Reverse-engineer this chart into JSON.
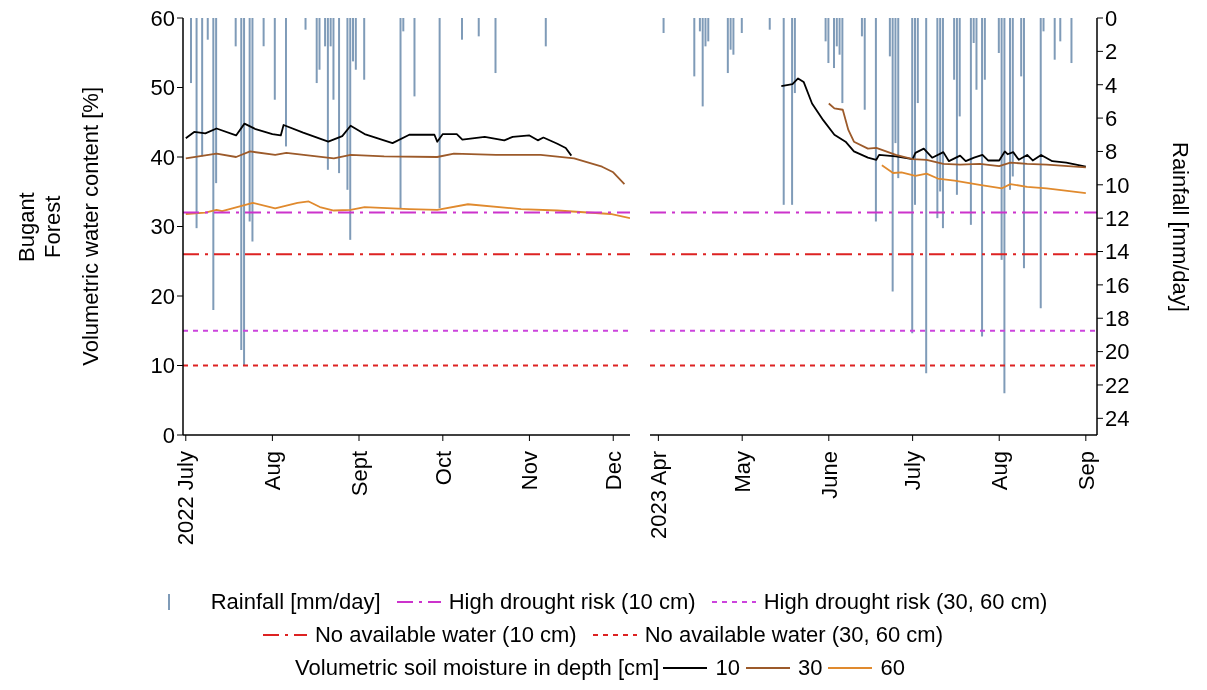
{
  "chart_data": [
    {
      "type": "line",
      "title": "Bugant Forest",
      "ylabel": "Volumetric water content [%]",
      "legend": "bottom",
      "legend_title": "Volumetric soil moisture in depth [cm]",
      "tick_labels": "xy",
      "xlim": [
        "2022-06-30",
        "2022-12-07"
      ],
      "xticks": [
        {
          "value": "2022-07-01",
          "label": "2022 July"
        },
        {
          "value": "2022-08-01",
          "label": "Aug"
        },
        {
          "value": "2022-09-01",
          "label": "Sept"
        },
        {
          "value": "2022-10-01",
          "label": "Oct"
        },
        {
          "value": "2022-11-01",
          "label": "Nov"
        },
        {
          "value": "2022-12-01",
          "label": "Dec"
        }
      ],
      "ylim": [
        0,
        60
      ],
      "yticks": [
        0,
        10,
        20,
        30,
        40,
        50,
        60
      ],
      "y2lim": [
        25,
        0
      ],
      "series": [
        {
          "name": "Rainfall [mm/day]",
          "type": "bar",
          "axis": "y2",
          "color": "#7f9bb8",
          "x": [
            "2022-07-03",
            "2022-07-05",
            "2022-07-07",
            "2022-07-09",
            "2022-07-11",
            "2022-07-12",
            "2022-07-19",
            "2022-07-21",
            "2022-07-22",
            "2022-07-24",
            "2022-07-25",
            "2022-07-29",
            "2022-08-02",
            "2022-08-06",
            "2022-08-13",
            "2022-08-17",
            "2022-08-18",
            "2022-08-20",
            "2022-08-21",
            "2022-08-22",
            "2022-08-23",
            "2022-08-25",
            "2022-08-28",
            "2022-08-29",
            "2022-08-30",
            "2022-08-31",
            "2022-09-03",
            "2022-09-16",
            "2022-09-17",
            "2022-09-21",
            "2022-09-30",
            "2022-10-08",
            "2022-10-14",
            "2022-10-20",
            "2022-11-07"
          ],
          "values": [
            3.9,
            12.6,
            8.3,
            1.3,
            17.5,
            9.9,
            1.7,
            19.9,
            20.8,
            12.2,
            13.4,
            1.7,
            4.9,
            7.7,
            0.7,
            3.9,
            3.1,
            1.7,
            9.1,
            1.7,
            4.9,
            9.3,
            10.3,
            13.3,
            2.6,
            3.1,
            3.7,
            11.4,
            0.8,
            4.7,
            11.4,
            1.3,
            1.1,
            3.3,
            1.7
          ]
        },
        {
          "name": "10",
          "color": "#000000",
          "x": [
            "2022-07-01",
            "2022-07-04",
            "2022-07-08",
            "2022-07-12",
            "2022-07-19",
            "2022-07-22",
            "2022-07-26",
            "2022-08-01",
            "2022-08-04",
            "2022-08-05",
            "2022-08-12",
            "2022-08-21",
            "2022-08-26",
            "2022-08-29",
            "2022-09-03",
            "2022-09-13",
            "2022-09-19",
            "2022-09-28",
            "2022-09-29",
            "2022-10-01",
            "2022-10-06",
            "2022-10-08",
            "2022-10-16",
            "2022-10-23",
            "2022-10-26",
            "2022-11-01",
            "2022-11-04",
            "2022-11-06",
            "2022-11-11",
            "2022-11-14",
            "2022-11-16"
          ],
          "values": [
            42.7,
            43.6,
            43.4,
            44.1,
            43.1,
            44.8,
            44.0,
            43.3,
            43.1,
            44.6,
            43.5,
            42.2,
            43.0,
            44.5,
            43.3,
            42.0,
            43.2,
            43.2,
            42.2,
            43.3,
            43.3,
            42.5,
            42.9,
            42.4,
            42.9,
            43.1,
            42.4,
            42.8,
            41.9,
            41.3,
            40.2
          ]
        },
        {
          "name": "30",
          "color": "#9c5a2a",
          "x": [
            "2022-07-01",
            "2022-07-12",
            "2022-07-19",
            "2022-07-24",
            "2022-08-02",
            "2022-08-06",
            "2022-08-23",
            "2022-08-29",
            "2022-09-10",
            "2022-09-29",
            "2022-10-05",
            "2022-10-20",
            "2022-11-05",
            "2022-11-17",
            "2022-11-27",
            "2022-12-01",
            "2022-12-05"
          ],
          "values": [
            39.8,
            40.5,
            40.0,
            40.8,
            40.3,
            40.6,
            39.8,
            40.3,
            40.1,
            40.0,
            40.5,
            40.3,
            40.3,
            39.8,
            38.6,
            37.8,
            36.1
          ]
        },
        {
          "name": "60",
          "color": "#e08a2e",
          "x": [
            "2022-07-01",
            "2022-07-08",
            "2022-07-12",
            "2022-07-14",
            "2022-07-25",
            "2022-08-02",
            "2022-08-10",
            "2022-08-14",
            "2022-08-18",
            "2022-08-23",
            "2022-08-29",
            "2022-09-03",
            "2022-09-19",
            "2022-09-29",
            "2022-10-10",
            "2022-10-29",
            "2022-11-11",
            "2022-11-30",
            "2022-12-07"
          ],
          "values": [
            31.8,
            32.0,
            32.4,
            32.2,
            33.4,
            32.6,
            33.4,
            33.6,
            32.8,
            32.3,
            32.4,
            32.8,
            32.5,
            32.4,
            33.2,
            32.5,
            32.3,
            31.8,
            31.2
          ]
        }
      ],
      "ref_lines": [
        {
          "axis": "y",
          "value": 32,
          "label": "High drought risk (10 cm)",
          "color": "#cc33cc",
          "line_style": "dashed"
        },
        {
          "axis": "y",
          "value": 15,
          "label": "High drought risk (30, 60 cm)",
          "color": "#cc44dd",
          "line_style": "dotted"
        },
        {
          "axis": "y",
          "value": 26,
          "label": "No available water (10 cm)",
          "color": "#dd2222",
          "line_style": "dashed"
        },
        {
          "axis": "y",
          "value": 10,
          "label": "No available water (30, 60 cm)",
          "color": "#dd2222",
          "line_style": "dotted"
        }
      ]
    },
    {
      "type": "line",
      "y2label": "Rainfall [mm/day]",
      "tick_labels": "xy2",
      "xlim": [
        "2023-03-29",
        "2023-09-05"
      ],
      "xticks": [
        {
          "value": "2023-04-01",
          "label": "2023 Apr"
        },
        {
          "value": "2023-05-01",
          "label": "May"
        },
        {
          "value": "2023-06-01",
          "label": "June"
        },
        {
          "value": "2023-07-01",
          "label": "July"
        },
        {
          "value": "2023-08-01",
          "label": "Aug"
        },
        {
          "value": "2023-09-01",
          "label": "Sep"
        }
      ],
      "ylim": [
        0,
        60
      ],
      "y2lim": [
        25,
        0
      ],
      "y2ticks": [
        0,
        2,
        4,
        6,
        8,
        10,
        12,
        14,
        16,
        18,
        20,
        22,
        24
      ],
      "series": [
        {
          "type": "bar",
          "axis": "y2",
          "color": "#7f9bb8",
          "x": [
            "2023-04-03",
            "2023-04-14",
            "2023-04-16",
            "2023-04-17",
            "2023-04-18",
            "2023-04-19",
            "2023-04-26",
            "2023-04-27",
            "2023-04-28",
            "2023-05-01",
            "2023-05-11",
            "2023-05-16",
            "2023-05-19",
            "2023-05-20",
            "2023-05-31",
            "2023-06-01",
            "2023-06-03",
            "2023-06-04",
            "2023-06-05",
            "2023-06-06",
            "2023-06-13",
            "2023-06-14",
            "2023-06-18",
            "2023-06-23",
            "2023-06-24",
            "2023-06-25",
            "2023-06-26",
            "2023-07-01",
            "2023-07-02",
            "2023-07-03",
            "2023-07-06",
            "2023-07-10",
            "2023-07-11",
            "2023-07-12",
            "2023-07-16",
            "2023-07-17",
            "2023-07-18",
            "2023-07-22",
            "2023-07-23",
            "2023-07-24",
            "2023-07-26",
            "2023-07-27",
            "2023-08-01",
            "2023-08-02",
            "2023-08-03",
            "2023-08-05",
            "2023-08-06",
            "2023-08-09",
            "2023-08-10",
            "2023-08-16",
            "2023-08-17",
            "2023-08-21",
            "2023-08-23",
            "2023-08-27"
          ],
          "values": [
            0.9,
            3.5,
            0.8,
            5.3,
            1.7,
            1.4,
            3.3,
            1.9,
            2.2,
            0.9,
            0.7,
            11.2,
            11.2,
            4.5,
            1.4,
            2.7,
            3.0,
            1.7,
            2.2,
            5.1,
            1.1,
            5.5,
            12.2,
            2.3,
            16.4,
            7.5,
            9.6,
            18.9,
            11.2,
            5.1,
            21.3,
            12.0,
            10.4,
            12.6,
            3.7,
            10.6,
            5.9,
            12.4,
            1.5,
            4.3,
            19.1,
            3.7,
            2.1,
            14.5,
            22.5,
            10.3,
            9.5,
            3.5,
            15.0,
            17.4,
            0.8,
            2.5,
            1.4,
            2.7
          ]
        },
        {
          "color": "#000000",
          "x": [
            "2023-05-15",
            "2023-05-19",
            "2023-05-21",
            "2023-05-23",
            "2023-05-26",
            "2023-05-30",
            "2023-06-03",
            "2023-06-07",
            "2023-06-10",
            "2023-06-15",
            "2023-06-18",
            "2023-06-19",
            "2023-06-25",
            "2023-07-01",
            "2023-07-02",
            "2023-07-05",
            "2023-07-08",
            "2023-07-12",
            "2023-07-14",
            "2023-07-18",
            "2023-07-20",
            "2023-07-23",
            "2023-07-26",
            "2023-07-28",
            "2023-08-01",
            "2023-08-03",
            "2023-08-04",
            "2023-08-06",
            "2023-08-08",
            "2023-08-11",
            "2023-08-13",
            "2023-08-16",
            "2023-08-20",
            "2023-08-25",
            "2023-09-01"
          ],
          "values": [
            50.2,
            50.5,
            51.3,
            50.8,
            47.7,
            45.3,
            43.2,
            42.2,
            40.8,
            39.9,
            39.6,
            40.3,
            40.1,
            39.7,
            40.6,
            41.2,
            39.9,
            40.7,
            39.4,
            40.2,
            39.4,
            39.9,
            40.3,
            39.5,
            39.5,
            40.8,
            40.4,
            40.7,
            39.6,
            40.3,
            39.5,
            40.3,
            39.4,
            39.2,
            38.6
          ]
        },
        {
          "color": "#9c5a2a",
          "x": [
            "2023-06-01",
            "2023-06-03",
            "2023-06-06",
            "2023-06-08",
            "2023-06-10",
            "2023-06-15",
            "2023-06-18",
            "2023-06-25",
            "2023-07-01",
            "2023-07-06",
            "2023-07-12",
            "2023-07-18",
            "2023-07-25",
            "2023-08-01",
            "2023-08-05",
            "2023-08-11",
            "2023-08-18",
            "2023-09-01"
          ],
          "values": [
            47.7,
            47.0,
            46.8,
            43.9,
            42.2,
            41.2,
            41.3,
            40.3,
            39.7,
            39.6,
            39.0,
            38.9,
            39.0,
            38.7,
            39.2,
            39.0,
            38.9,
            38.5
          ]
        },
        {
          "color": "#e08a2e",
          "x": [
            "2023-06-20",
            "2023-06-24",
            "2023-06-27",
            "2023-07-02",
            "2023-07-06",
            "2023-07-10",
            "2023-07-16",
            "2023-07-25",
            "2023-08-02",
            "2023-08-05",
            "2023-08-11",
            "2023-08-18",
            "2023-09-01"
          ],
          "values": [
            38.8,
            37.7,
            37.8,
            37.3,
            37.6,
            36.9,
            36.6,
            36.0,
            35.5,
            36.1,
            35.7,
            35.5,
            34.8
          ]
        }
      ],
      "ref_lines": [
        {
          "axis": "y",
          "value": 32,
          "color": "#cc33cc",
          "line_style": "dashed"
        },
        {
          "axis": "y",
          "value": 15,
          "color": "#cc44dd",
          "line_style": "dotted"
        },
        {
          "axis": "y",
          "value": 26,
          "color": "#dd2222",
          "line_style": "dashed"
        },
        {
          "axis": "y",
          "value": 10,
          "color": "#dd2222",
          "line_style": "dotted"
        }
      ]
    }
  ]
}
